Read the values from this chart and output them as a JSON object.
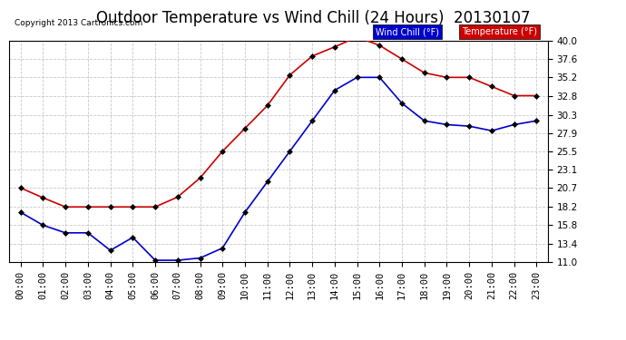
{
  "title": "Outdoor Temperature vs Wind Chill (24 Hours)  20130107",
  "copyright": "Copyright 2013 Cartronics.com",
  "legend_wind_chill": "Wind Chill (°F)",
  "legend_temperature": "Temperature (°F)",
  "hours": [
    "00:00",
    "01:00",
    "02:00",
    "03:00",
    "04:00",
    "05:00",
    "06:00",
    "07:00",
    "08:00",
    "09:00",
    "10:00",
    "11:00",
    "12:00",
    "13:00",
    "14:00",
    "15:00",
    "16:00",
    "17:00",
    "18:00",
    "19:00",
    "20:00",
    "21:00",
    "22:00",
    "23:00"
  ],
  "temperature": [
    20.7,
    19.4,
    18.2,
    18.2,
    18.2,
    18.2,
    18.2,
    19.5,
    22.0,
    25.5,
    28.5,
    31.5,
    35.5,
    38.0,
    39.2,
    40.5,
    39.4,
    37.6,
    35.8,
    35.2,
    35.2,
    34.0,
    32.8,
    32.8
  ],
  "wind_chill": [
    17.5,
    15.8,
    14.8,
    14.8,
    12.5,
    14.2,
    11.2,
    11.2,
    11.5,
    12.8,
    17.5,
    21.5,
    25.5,
    29.5,
    33.5,
    35.2,
    35.2,
    31.8,
    29.5,
    29.0,
    28.8,
    28.2,
    29.0,
    29.5
  ],
  "ylim_min": 11.0,
  "ylim_max": 40.0,
  "yticks": [
    11.0,
    13.4,
    15.8,
    18.2,
    20.7,
    23.1,
    25.5,
    27.9,
    30.3,
    32.8,
    35.2,
    37.6,
    40.0
  ],
  "background_color": "#ffffff",
  "plot_bg_color": "#ffffff",
  "grid_color": "#bbbbbb",
  "temp_color": "#cc0000",
  "wind_color": "#0000cc",
  "title_fontsize": 12,
  "tick_fontsize": 7.5,
  "legend_wind_bg": "#0000cc",
  "legend_temp_bg": "#cc0000",
  "legend_text_color": "#ffffff"
}
